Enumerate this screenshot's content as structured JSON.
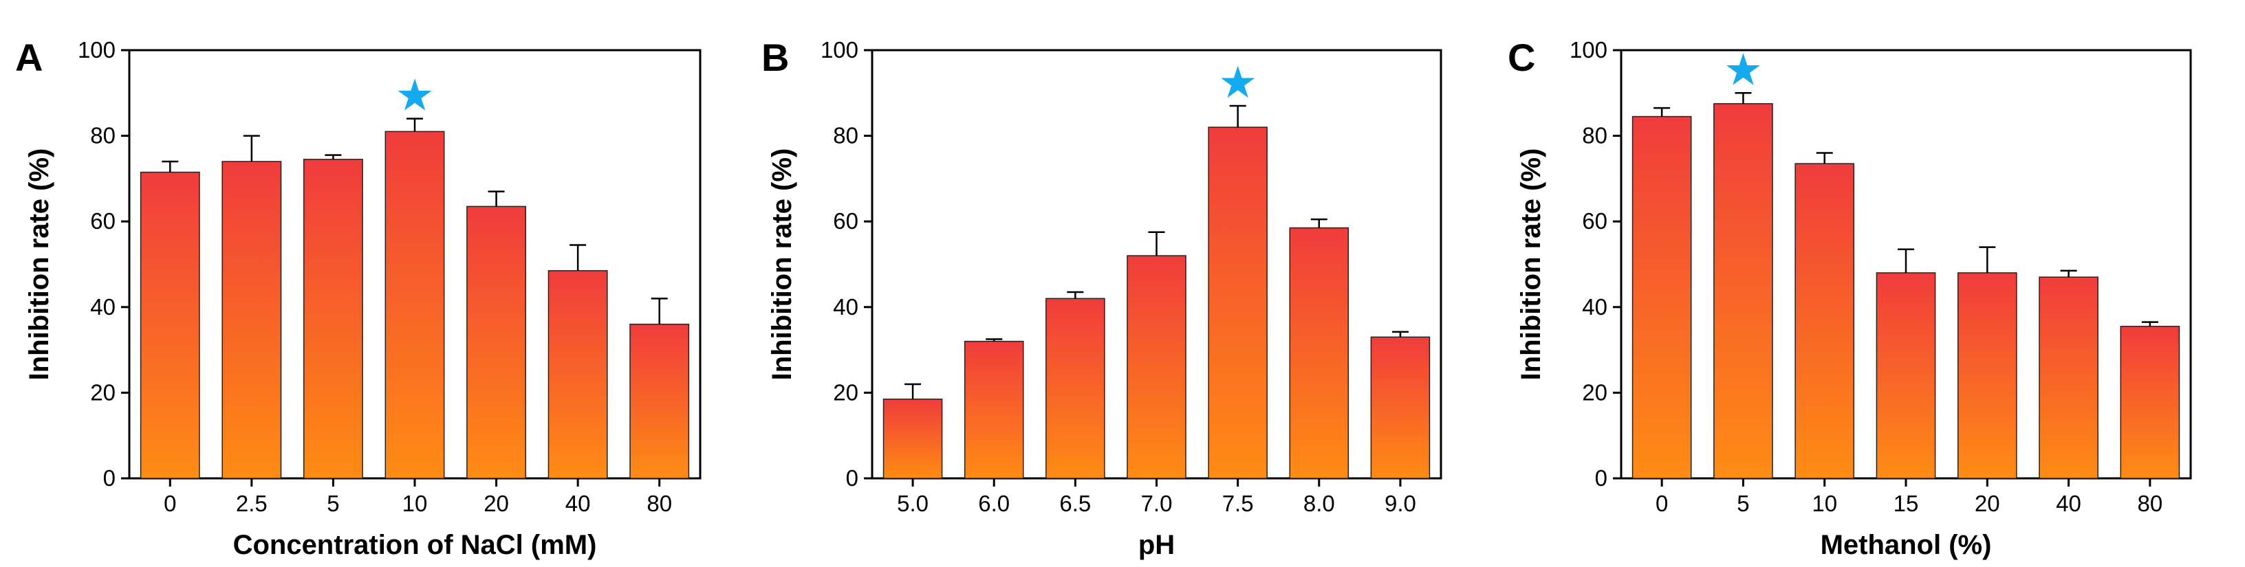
{
  "figure": {
    "panels": [
      "A",
      "B",
      "C"
    ]
  },
  "colors": {
    "bar_top": "#f03c3c",
    "bar_bottom": "#ff8c14",
    "star": "#14aaf0",
    "axis": "#000000"
  },
  "chart_data": [
    {
      "type": "bar",
      "panel": "A",
      "xlabel": "Concentration of NaCl (mM)",
      "ylabel": "Inhibition rate (%)",
      "ylim": [
        0,
        100
      ],
      "yticks": [
        0,
        20,
        40,
        60,
        80,
        100
      ],
      "categories": [
        "0",
        "2.5",
        "5",
        "10",
        "20",
        "40",
        "80"
      ],
      "values": [
        71.5,
        74,
        74.5,
        81,
        63.5,
        48.5,
        36
      ],
      "errors": [
        2.5,
        6,
        1,
        3,
        3.5,
        6,
        6
      ],
      "highlight": {
        "category": "10",
        "marker": "★"
      },
      "grid": false
    },
    {
      "type": "bar",
      "panel": "B",
      "xlabel": "pH",
      "ylabel": "Inhibition rate (%)",
      "ylim": [
        0,
        100
      ],
      "yticks": [
        0,
        20,
        40,
        60,
        80,
        100
      ],
      "categories": [
        "5.0",
        "6.0",
        "6.5",
        "7.0",
        "7.5",
        "8.0",
        "9.0"
      ],
      "values": [
        18.5,
        32,
        42,
        52,
        82,
        58.5,
        33
      ],
      "errors": [
        3.5,
        0.5,
        1.5,
        5.5,
        5,
        2,
        1.2
      ],
      "highlight": {
        "category": "7.5",
        "marker": "★"
      },
      "grid": false
    },
    {
      "type": "bar",
      "panel": "C",
      "xlabel": "Methanol (%)",
      "ylabel": "Inhibition rate (%)",
      "ylim": [
        0,
        100
      ],
      "yticks": [
        0,
        20,
        40,
        60,
        80,
        100
      ],
      "categories": [
        "0",
        "5",
        "10",
        "15",
        "20",
        "40",
        "80"
      ],
      "values": [
        84.5,
        87.5,
        73.5,
        48,
        48,
        47,
        35.5
      ],
      "errors": [
        2,
        2.5,
        2.5,
        5.5,
        6,
        1.5,
        1
      ],
      "highlight": {
        "category": "5",
        "marker": "★"
      },
      "grid": false
    }
  ]
}
